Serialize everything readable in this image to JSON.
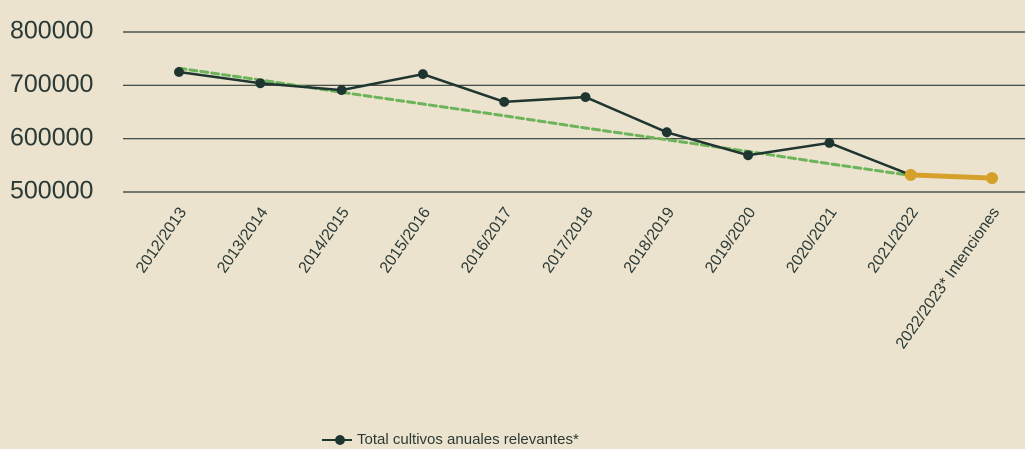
{
  "chart_data": {
    "type": "line",
    "categories": [
      "2012/2013",
      "2013/2014",
      "2014/2015",
      "2015/2016",
      "2016/2017",
      "2017/2018",
      "2018/2019",
      "2019/2020",
      "2020/2021",
      "2021/2022",
      "2022/2023* Intenciones"
    ],
    "series": [
      {
        "name": "Total cultivos anuales relevantes*",
        "color": "#1f3530",
        "values": [
          725000,
          704000,
          691000,
          721000,
          669000,
          678000,
          612000,
          569000,
          592000,
          532000,
          null
        ]
      },
      {
        "color": "#d6a12a",
        "values": [
          null,
          null,
          null,
          null,
          null,
          null,
          null,
          null,
          null,
          532000,
          526000
        ]
      },
      {
        "color": "#6db35a",
        "dashed": true,
        "values": [
          732000,
          710000,
          687000,
          665000,
          643000,
          620000,
          598000,
          576000,
          553000,
          531000,
          null
        ]
      }
    ],
    "ylim": [
      500000,
      800000
    ],
    "yticks": [
      500000,
      600000,
      700000,
      800000
    ],
    "grid": true
  }
}
